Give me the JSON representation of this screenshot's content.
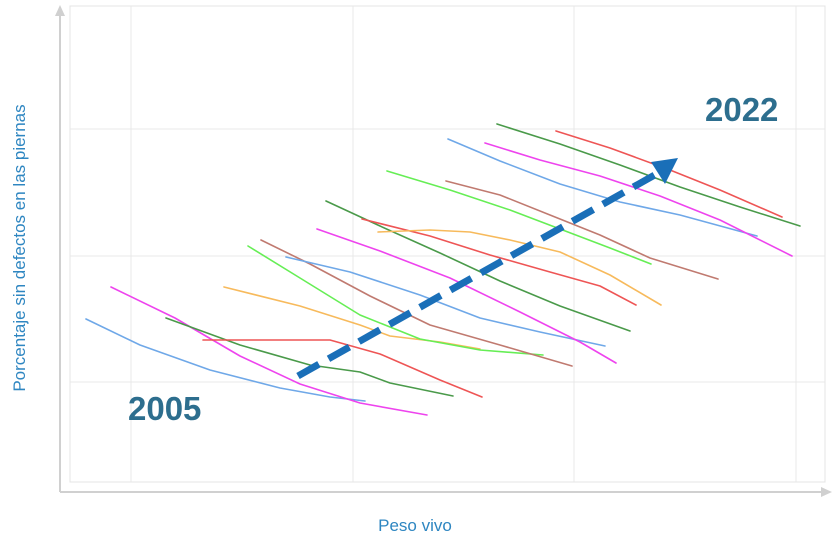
{
  "chart_data": {
    "type": "line",
    "title": "",
    "xlabel": "Peso vivo",
    "ylabel": "Porcentaje sin defectos en las piernas",
    "x_ticks_labeled": false,
    "y_ticks_labeled": false,
    "grid": true,
    "legend": "none",
    "annotations": [
      {
        "text": "2005",
        "color": "#2d6e8e"
      },
      {
        "text": "2022",
        "color": "#2d6e8e"
      }
    ],
    "trend_arrow": {
      "style": "dashed",
      "color": "#1a6fb8",
      "from": "2005",
      "to": "2022"
    },
    "series": [
      {
        "color": "#6fa8e8",
        "points": [
          [
            86,
            319
          ],
          [
            140,
            345
          ],
          [
            210,
            370
          ],
          [
            280,
            388
          ],
          [
            330,
            397
          ],
          [
            365,
            401
          ]
        ]
      },
      {
        "color": "#ee44ee",
        "points": [
          [
            111,
            287
          ],
          [
            175,
            318
          ],
          [
            240,
            356
          ],
          [
            300,
            384
          ],
          [
            360,
            403
          ],
          [
            427,
            415
          ]
        ]
      },
      {
        "color": "#4a9a4a",
        "points": [
          [
            166,
            318
          ],
          [
            240,
            345
          ],
          [
            310,
            365
          ],
          [
            360,
            372
          ],
          [
            390,
            383
          ],
          [
            453,
            396
          ]
        ]
      },
      {
        "color": "#ee5555",
        "points": [
          [
            203,
            340
          ],
          [
            330,
            340
          ],
          [
            380,
            354
          ],
          [
            440,
            380
          ],
          [
            482,
            397
          ]
        ]
      },
      {
        "color": "#f7ba5c",
        "points": [
          [
            224,
            287
          ],
          [
            300,
            306
          ],
          [
            360,
            325
          ],
          [
            390,
            336
          ],
          [
            440,
            342
          ],
          [
            480,
            349
          ]
        ]
      },
      {
        "color": "#66ee55",
        "points": [
          [
            248,
            246
          ],
          [
            300,
            278
          ],
          [
            360,
            315
          ],
          [
            420,
            339
          ],
          [
            480,
            350
          ],
          [
            543,
            355
          ]
        ]
      },
      {
        "color": "#c07a70",
        "points": [
          [
            261,
            240
          ],
          [
            310,
            264
          ],
          [
            370,
            296
          ],
          [
            430,
            325
          ],
          [
            500,
            345
          ],
          [
            572,
            366
          ]
        ]
      },
      {
        "color": "#6fa8e8",
        "points": [
          [
            286,
            257
          ],
          [
            350,
            272
          ],
          [
            420,
            295
          ],
          [
            480,
            318
          ],
          [
            540,
            332
          ],
          [
            605,
            346
          ]
        ]
      },
      {
        "color": "#ee44ee",
        "points": [
          [
            317,
            229
          ],
          [
            380,
            251
          ],
          [
            450,
            278
          ],
          [
            520,
            312
          ],
          [
            580,
            342
          ],
          [
            616,
            363
          ]
        ]
      },
      {
        "color": "#4a9a4a",
        "points": [
          [
            326,
            201
          ],
          [
            380,
            226
          ],
          [
            440,
            253
          ],
          [
            500,
            281
          ],
          [
            560,
            306
          ],
          [
            630,
            331
          ]
        ]
      },
      {
        "color": "#ee5555",
        "points": [
          [
            362,
            219
          ],
          [
            430,
            236
          ],
          [
            490,
            255
          ],
          [
            550,
            272
          ],
          [
            600,
            286
          ],
          [
            636,
            305
          ]
        ]
      },
      {
        "color": "#f7ba5c",
        "points": [
          [
            378,
            232
          ],
          [
            430,
            230
          ],
          [
            470,
            232
          ],
          [
            510,
            240
          ],
          [
            560,
            252
          ],
          [
            610,
            275
          ],
          [
            661,
            305
          ]
        ]
      },
      {
        "color": "#66ee55",
        "points": [
          [
            387,
            171
          ],
          [
            450,
            190
          ],
          [
            510,
            210
          ],
          [
            560,
            229
          ],
          [
            610,
            248
          ],
          [
            651,
            264
          ]
        ]
      },
      {
        "color": "#c07a70",
        "points": [
          [
            446,
            181
          ],
          [
            500,
            195
          ],
          [
            550,
            215
          ],
          [
            600,
            235
          ],
          [
            650,
            258
          ],
          [
            718,
            279
          ]
        ]
      },
      {
        "color": "#6fa8e8",
        "points": [
          [
            448,
            139
          ],
          [
            500,
            161
          ],
          [
            560,
            184
          ],
          [
            620,
            202
          ],
          [
            680,
            215
          ],
          [
            757,
            236
          ]
        ]
      },
      {
        "color": "#ee44ee",
        "points": [
          [
            485,
            143
          ],
          [
            540,
            160
          ],
          [
            600,
            176
          ],
          [
            660,
            196
          ],
          [
            720,
            220
          ],
          [
            792,
            256
          ]
        ]
      },
      {
        "color": "#4a9a4a",
        "points": [
          [
            497,
            124
          ],
          [
            560,
            144
          ],
          [
            620,
            165
          ],
          [
            680,
            187
          ],
          [
            740,
            207
          ],
          [
            800,
            226
          ]
        ]
      },
      {
        "color": "#ee5555",
        "points": [
          [
            556,
            131
          ],
          [
            610,
            148
          ],
          [
            670,
            170
          ],
          [
            720,
            190
          ],
          [
            782,
            217
          ]
        ]
      }
    ]
  }
}
